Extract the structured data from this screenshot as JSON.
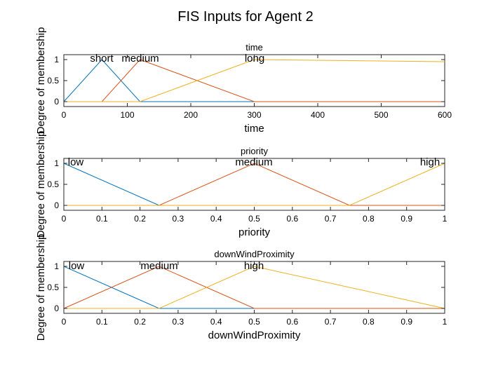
{
  "figure": {
    "title": "FIS Inputs for Agent 2"
  },
  "chart_data": [
    {
      "type": "line",
      "title": "time",
      "xlabel": "time",
      "ylabel": "Degree of membership",
      "xlim": [
        0,
        600
      ],
      "ylim": [
        0,
        1
      ],
      "xticks": [
        0,
        100,
        200,
        300,
        400,
        500,
        600
      ],
      "yticks": [
        0,
        0.5,
        1
      ],
      "series": [
        {
          "name": "short",
          "color": "#0072BD",
          "x": [
            0,
            60,
            120,
            600
          ],
          "y": [
            0,
            1,
            0,
            0
          ]
        },
        {
          "name": "medium",
          "color": "#D95319",
          "x": [
            0,
            60,
            120,
            300,
            600
          ],
          "y": [
            0,
            0,
            1,
            0,
            0
          ]
        },
        {
          "name": "long",
          "color": "#EDB120",
          "x": [
            0,
            120,
            300,
            600
          ],
          "y": [
            0,
            0,
            1,
            0.95
          ]
        }
      ]
    },
    {
      "type": "line",
      "title": "priority",
      "xlabel": "priority",
      "ylabel": "Degree of membership",
      "xlim": [
        0,
        1
      ],
      "ylim": [
        0,
        1
      ],
      "xticks": [
        0,
        0.1,
        0.2,
        0.3,
        0.4,
        0.5,
        0.6,
        0.7,
        0.8,
        0.9,
        1
      ],
      "yticks": [
        0,
        0.5,
        1
      ],
      "series": [
        {
          "name": "low",
          "color": "#0072BD",
          "x": [
            0,
            0.25,
            1
          ],
          "y": [
            1,
            0,
            0
          ]
        },
        {
          "name": "medium",
          "color": "#D95319",
          "x": [
            0,
            0.25,
            0.5,
            0.75,
            1
          ],
          "y": [
            0,
            0,
            1,
            0,
            0
          ]
        },
        {
          "name": "high",
          "color": "#EDB120",
          "x": [
            0,
            0.75,
            1
          ],
          "y": [
            0,
            0,
            1
          ]
        }
      ]
    },
    {
      "type": "line",
      "title": "downWindProximity",
      "xlabel": "downWindProximity",
      "ylabel": "Degree of membership",
      "xlim": [
        0,
        1
      ],
      "ylim": [
        0,
        1
      ],
      "xticks": [
        0,
        0.1,
        0.2,
        0.3,
        0.4,
        0.5,
        0.6,
        0.7,
        0.8,
        0.9,
        1
      ],
      "yticks": [
        0,
        0.5,
        1
      ],
      "series": [
        {
          "name": "low",
          "color": "#0072BD",
          "x": [
            0,
            0.25,
            0.5
          ],
          "y": [
            1,
            0,
            0
          ]
        },
        {
          "name": "medium",
          "color": "#D95319",
          "x": [
            0,
            0.25,
            0.5,
            1
          ],
          "y": [
            0,
            1,
            0,
            0
          ]
        },
        {
          "name": "high",
          "color": "#EDB120",
          "x": [
            0,
            0.25,
            0.5,
            1
          ],
          "y": [
            0,
            0,
            1,
            0
          ]
        }
      ]
    }
  ]
}
